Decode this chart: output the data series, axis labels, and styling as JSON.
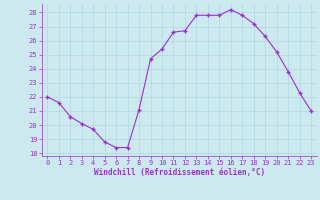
{
  "x": [
    0,
    1,
    2,
    3,
    4,
    5,
    6,
    7,
    8,
    9,
    10,
    11,
    12,
    13,
    14,
    15,
    16,
    17,
    18,
    19,
    20,
    21,
    22,
    23
  ],
  "y": [
    22.0,
    21.6,
    20.6,
    20.1,
    19.7,
    18.8,
    18.4,
    18.4,
    21.1,
    24.7,
    25.4,
    26.6,
    26.7,
    27.8,
    27.8,
    27.8,
    28.2,
    27.8,
    27.2,
    26.3,
    25.2,
    23.8,
    22.3,
    21.0
  ],
  "line_color": "#9932CC",
  "marker": "+",
  "marker_size": 3,
  "bg_color": "#cce9f0",
  "grid_color": "#b0d8e0",
  "xlabel": "Windchill (Refroidissement éolien,°C)",
  "tick_color": "#9932CC",
  "ylim": [
    17.8,
    28.6
  ],
  "xlim": [
    -0.5,
    23.5
  ],
  "yticks": [
    18,
    19,
    20,
    21,
    22,
    23,
    24,
    25,
    26,
    27,
    28
  ],
  "xticks": [
    0,
    1,
    2,
    3,
    4,
    5,
    6,
    7,
    8,
    9,
    10,
    11,
    12,
    13,
    14,
    15,
    16,
    17,
    18,
    19,
    20,
    21,
    22,
    23
  ],
  "tick_fontsize": 5.0,
  "xlabel_fontsize": 5.5
}
